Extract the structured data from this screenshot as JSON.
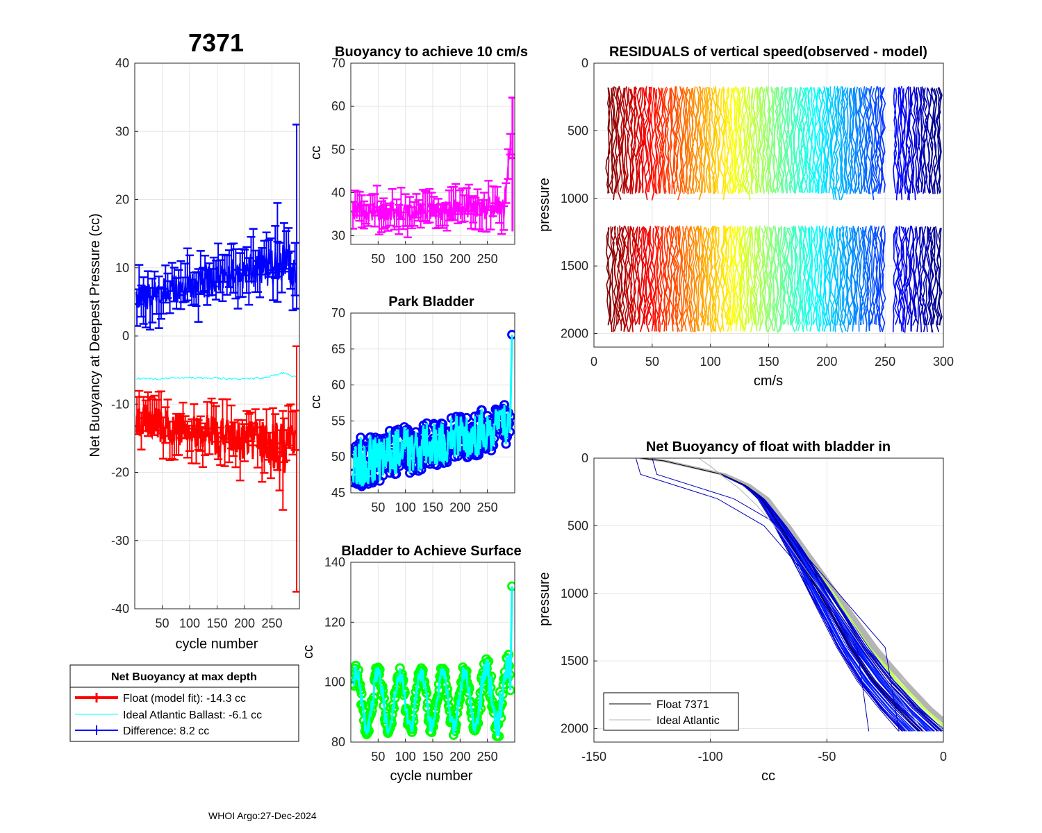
{
  "figure_title": "7371",
  "footer": "WHOI Argo:27-Dec-2024",
  "colors": {
    "red": "#ff0000",
    "blue": "#0000ff",
    "cyan": "#00ffff",
    "magenta": "#ff00ff",
    "green": "#00ff00",
    "gray": "#b4b4b4",
    "navy": "#000080"
  },
  "chart_data": [
    {
      "id": "net-buoyancy",
      "type": "line",
      "title": "7371",
      "xlabel": "cycle number",
      "ylabel": "Net Buoyancy at Deepest Pressure (cc)",
      "xlim": [
        0,
        300
      ],
      "ylim": [
        -40,
        40
      ],
      "xticks": [
        50,
        100,
        150,
        200,
        250
      ],
      "yticks": [
        -40,
        -30,
        -20,
        -10,
        0,
        10,
        20,
        30,
        40
      ],
      "series": [
        {
          "name": "Float (model fit)",
          "color": "#ff0000",
          "kind": "errorbar",
          "x": [
            5,
            30,
            55,
            80,
            105,
            130,
            155,
            180,
            205,
            230,
            255,
            280,
            295
          ],
          "y": [
            -12,
            -12.8,
            -13.2,
            -13.8,
            -14.2,
            -14.5,
            -14.8,
            -15.2,
            -15.5,
            -15.5,
            -16,
            -16.5,
            -14.3
          ],
          "spread": [
            2.5,
            2.5,
            2.5,
            2.5,
            2.5,
            3,
            3,
            3,
            3,
            3,
            3.5,
            4,
            2
          ],
          "err": 2.5
        },
        {
          "name": "Ideal Atlantic Ballast",
          "color": "#00ffff",
          "kind": "line",
          "x": [
            5,
            50,
            100,
            150,
            200,
            240,
            270,
            296
          ],
          "y": [
            -6.2,
            -6.3,
            -6.1,
            -6.2,
            -6.3,
            -6.1,
            -5.4,
            -6.1
          ]
        },
        {
          "name": "Difference",
          "color": "#0000ff",
          "kind": "errorbar",
          "x": [
            5,
            30,
            55,
            80,
            105,
            130,
            155,
            180,
            205,
            230,
            255,
            280,
            295
          ],
          "y": [
            5.5,
            6,
            6.5,
            7,
            7.5,
            8,
            8.5,
            9,
            9.5,
            10,
            10.5,
            11,
            8.2
          ],
          "spread": [
            2,
            2,
            2,
            2,
            2,
            2.5,
            2.5,
            2.5,
            2.5,
            3,
            3,
            3,
            2
          ],
          "err": 3
        }
      ],
      "outliers": [
        {
          "series": "Difference",
          "x": 295,
          "y": 12,
          "lo": 4,
          "hi": 31
        },
        {
          "series": "Float (model fit)",
          "x": 295,
          "y": -18,
          "lo": -37.5,
          "hi": -1.5
        },
        {
          "series": "Float (model fit)",
          "x": 270,
          "y": -18,
          "lo": -25.5,
          "hi": -11
        },
        {
          "series": "Difference",
          "x": 260,
          "y": 12,
          "lo": 5,
          "hi": 19.5
        }
      ],
      "legend": {
        "title": "Net Buoyancy at max depth",
        "entries": [
          {
            "label": "Float (model fit): -14.3 cc",
            "color": "#ff0000",
            "kind": "errorbar"
          },
          {
            "label": "Ideal Atlantic Ballast:  -6.1 cc",
            "color": "#00ffff",
            "kind": "line"
          },
          {
            "label": "Difference:   8.2 cc",
            "color": "#0000ff",
            "kind": "errorbar"
          }
        ]
      }
    },
    {
      "id": "buoyancy-10cms",
      "type": "line",
      "title": "Buoyancy to achieve 10 cm/s",
      "xlabel": "",
      "ylabel": "cc",
      "xlim": [
        0,
        300
      ],
      "ylim": [
        28,
        70
      ],
      "xticks": [
        50,
        100,
        150,
        200,
        250
      ],
      "yticks": [
        30,
        40,
        50,
        60,
        70
      ],
      "series": [
        {
          "name": "buoyancy",
          "color": "#ff00ff",
          "kind": "errorbar",
          "x": [
            5,
            30,
            55,
            80,
            105,
            130,
            155,
            180,
            205,
            230,
            255,
            280,
            296
          ],
          "y": [
            36,
            35.5,
            35.8,
            36,
            35.5,
            36,
            35.8,
            36,
            36.2,
            36,
            36.5,
            37,
            55
          ],
          "spread": [
            2.5,
            2.5,
            2.5,
            2.5,
            2.5,
            2.5,
            2.5,
            2.5,
            2.5,
            2.5,
            3,
            3,
            0
          ],
          "err": 3
        }
      ]
    },
    {
      "id": "park-bladder",
      "type": "line",
      "title": "Park Bladder",
      "xlabel": "",
      "ylabel": "cc",
      "xlim": [
        0,
        300
      ],
      "ylim": [
        45,
        70
      ],
      "xticks": [
        50,
        100,
        150,
        200,
        250
      ],
      "yticks": [
        45,
        50,
        55,
        60,
        65,
        70
      ],
      "series": [
        {
          "name": "park",
          "color": "#00ffff",
          "marker": "#0000ff",
          "kind": "markerline",
          "x": [
            8,
            20,
            35,
            50,
            65,
            80,
            95,
            110,
            125,
            140,
            155,
            170,
            185,
            200,
            215,
            230,
            245,
            260,
            275,
            285,
            292,
            295
          ],
          "y": [
            47,
            49,
            48,
            50,
            49,
            50,
            50.5,
            50,
            51,
            50.5,
            51,
            52,
            51.5,
            52,
            52.5,
            52,
            53,
            53,
            54,
            53,
            52,
            67
          ]
        }
      ],
      "band": {
        "lo_base": 45.5,
        "lo_slope": 0.02,
        "hi_base": 51,
        "hi_slope": 0.017
      }
    },
    {
      "id": "bladder-surface",
      "type": "line",
      "title": "Bladder to Achieve Surface",
      "xlabel": "cycle number",
      "ylabel": "cc",
      "xlim": [
        0,
        300
      ],
      "ylim": [
        80,
        140
      ],
      "xticks": [
        50,
        100,
        150,
        200,
        250
      ],
      "yticks": [
        80,
        100,
        120,
        140
      ],
      "series": [
        {
          "name": "surface",
          "color": "#00ffff",
          "marker": "#00ff00",
          "kind": "markerline",
          "x": [
            8,
            20,
            35,
            50,
            65,
            80,
            95,
            110,
            125,
            140,
            155,
            170,
            185,
            200,
            215,
            230,
            245,
            260,
            275,
            285,
            292,
            295
          ],
          "y": [
            95,
            92,
            88,
            96,
            99,
            103,
            96,
            90,
            103,
            95,
            89,
            100,
            96,
            90,
            100,
            94,
            96,
            90,
            106,
            97,
            87,
            132
          ]
        }
      ]
    },
    {
      "id": "residuals",
      "type": "line",
      "title": "RESIDUALS of vertical speed(observed - model)",
      "xlabel": "cm/s",
      "ylabel": "pressure",
      "xlim": [
        0,
        300
      ],
      "ylim": [
        2100,
        0
      ],
      "xticks": [
        0,
        50,
        100,
        150,
        200,
        250,
        300
      ],
      "yticks": [
        0,
        500,
        1000,
        1500,
        2000
      ],
      "series": [
        {
          "name": "residual profiles",
          "kind": "jetband",
          "x_start": 12,
          "x_end": 298,
          "gaps": [
            [
              108,
              110
            ],
            [
              250,
              258
            ]
          ],
          "segments": [
            [
              180,
              1010
            ],
            [
              1210,
              1990
            ]
          ]
        }
      ]
    },
    {
      "id": "net-buoyancy-bladder",
      "type": "line",
      "title": "Net Buoyancy of float with bladder in",
      "xlabel": "cc",
      "ylabel": "pressure",
      "xlim": [
        -150,
        0
      ],
      "ylim": [
        2100,
        0
      ],
      "xticks": [
        -150,
        -100,
        -50,
        0
      ],
      "yticks": [
        0,
        500,
        1000,
        1500,
        2000
      ],
      "series": [
        {
          "name": "Float 7371",
          "color": "#000000",
          "kind": "line",
          "x": [
            -130,
            -120,
            -110,
            -95,
            -85,
            -78,
            -70,
            -60,
            -50,
            -40,
            -30,
            -20,
            -10
          ],
          "y": [
            0,
            20,
            60,
            120,
            200,
            300,
            500,
            800,
            1100,
            1400,
            1650,
            1850,
            2020
          ]
        },
        {
          "name": "Ideal Atlantic",
          "color": "#b4b4b4",
          "kind": "line",
          "x": [
            -105,
            -100,
            -95,
            -88,
            -80,
            -70,
            -58,
            -45,
            -33,
            -20,
            -8
          ],
          "y": [
            0,
            60,
            130,
            220,
            350,
            550,
            850,
            1150,
            1450,
            1750,
            2030
          ]
        }
      ],
      "legend": {
        "entries": [
          {
            "label": "Float 7371",
            "color": "#000000",
            "kind": "line"
          },
          {
            "label": "Ideal Atlantic",
            "color": "#b4b4b4",
            "kind": "line"
          }
        ]
      }
    }
  ]
}
